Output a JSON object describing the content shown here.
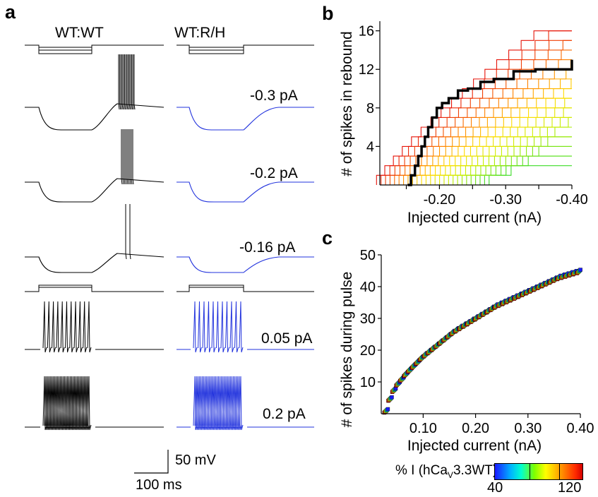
{
  "panels": {
    "a": {
      "letter": "a",
      "col_titles": [
        "WT:WT",
        "WT:R/H"
      ],
      "trace_labels": [
        "-0.3 pA",
        "-0.2 pA",
        "-0.16 pA",
        "0.05 pA",
        "0.2 pA"
      ],
      "scale_bar": {
        "voltage": "50 mV",
        "time": "100 ms"
      },
      "colors": {
        "wt": "#000000",
        "rh": "#2233dd"
      }
    },
    "b": {
      "letter": "b"
    },
    "c": {
      "letter": "c"
    }
  },
  "colorbar": {
    "label_prefix": "% I (hCa",
    "label_sub": "V",
    "label_suffix": "3.3WT)",
    "min_label": "40",
    "max_label": "120",
    "range": [
      40,
      120
    ]
  },
  "chart_data": [
    {
      "type": "line",
      "panel": "b",
      "xlabel": "Injected current (nA)",
      "ylabel": "# of spikes in rebound",
      "xlim": [
        -0.11,
        -0.4
      ],
      "ylim": [
        0,
        17
      ],
      "xticks": [
        -0.2,
        -0.3,
        -0.4
      ],
      "xtick_labels": [
        "-0.20",
        "-0.30",
        "-0.40"
      ],
      "yticks": [
        4,
        8,
        12,
        16
      ],
      "yticks_labels": [
        "4",
        "8",
        "12",
        "16"
      ],
      "grid": false,
      "highlighted_series": {
        "color": "#000000",
        "x": [
          -0.152,
          -0.157,
          -0.163,
          -0.168,
          -0.173,
          -0.178,
          -0.183,
          -0.189,
          -0.196,
          -0.204,
          -0.214,
          -0.228,
          -0.243,
          -0.262,
          -0.282,
          -0.312,
          -0.345,
          -0.395,
          -0.4
        ],
        "y": [
          0,
          1,
          2,
          3,
          4,
          5,
          6,
          7,
          8,
          8.5,
          9,
          9.8,
          10,
          10.7,
          11,
          11.8,
          12,
          12,
          13
        ]
      }
    },
    {
      "type": "scatter",
      "panel": "c",
      "xlabel": "Injected current (nA)",
      "ylabel": "# of spikes during pulse",
      "xlim": [
        0.02,
        0.4
      ],
      "ylim": [
        0,
        50
      ],
      "xticks": [
        0.1,
        0.2,
        0.3,
        0.4
      ],
      "xtick_labels": [
        "0.10",
        "0.20",
        "0.30",
        "0.40"
      ],
      "yticks": [
        10,
        20,
        30,
        40,
        50
      ],
      "ytick_labels": [
        "10",
        "20",
        "30",
        "40",
        "50"
      ],
      "grid": false,
      "curve": {
        "x": [
          0.03,
          0.04,
          0.05,
          0.07,
          0.1,
          0.13,
          0.16,
          0.2,
          0.24,
          0.28,
          0.32,
          0.36,
          0.4
        ],
        "y": [
          1,
          6,
          9,
          13,
          18,
          22,
          26,
          30,
          34,
          37,
          40,
          43,
          45
        ]
      }
    }
  ]
}
